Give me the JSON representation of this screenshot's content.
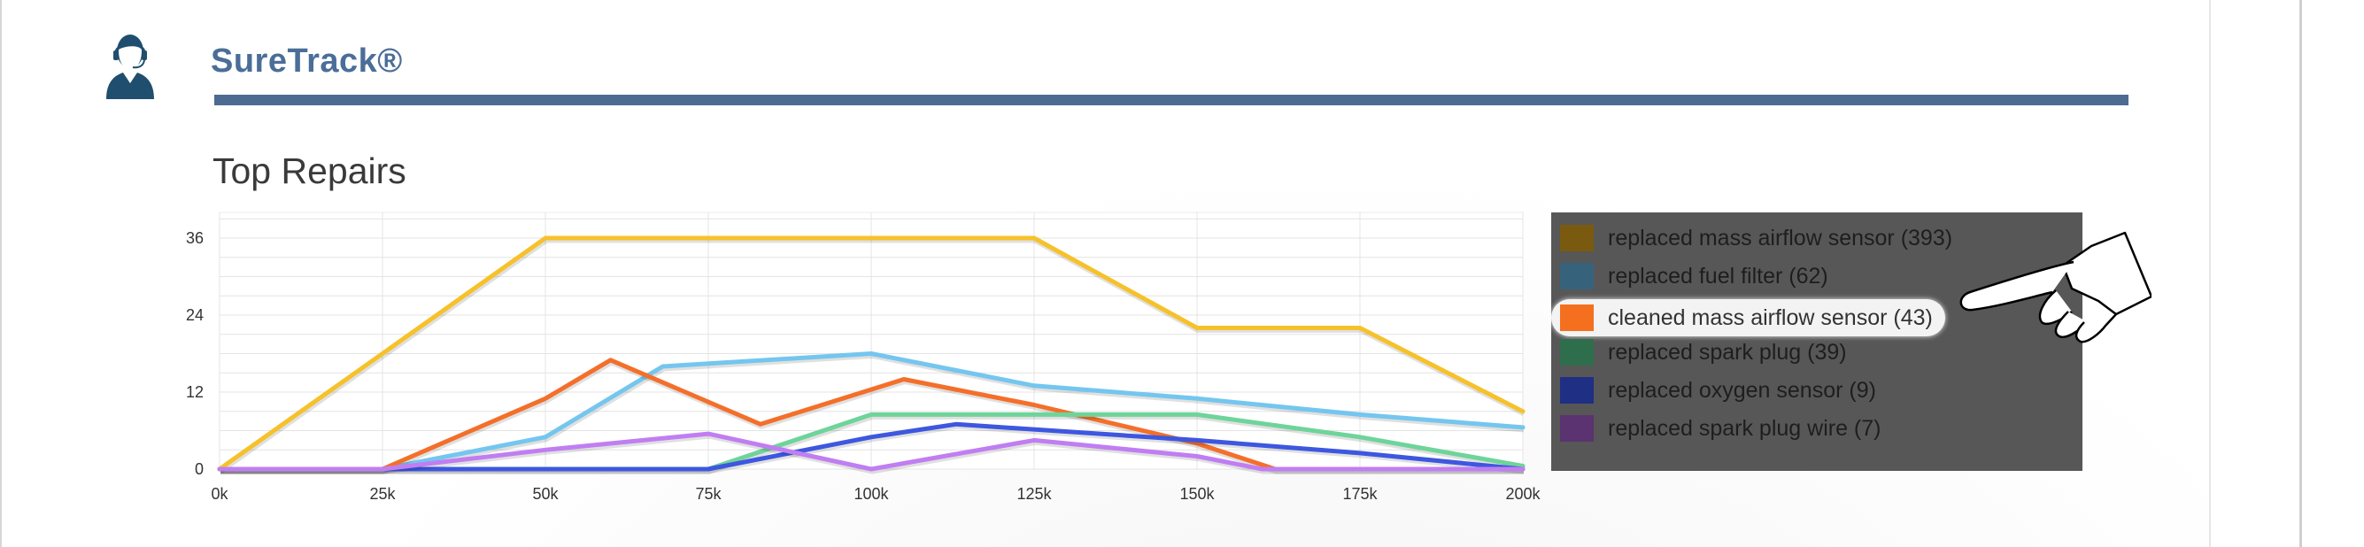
{
  "brand": {
    "name": "SureTrack®"
  },
  "section": {
    "title": "Top Repairs"
  },
  "icons": {
    "avatar": "person-avatar-icon",
    "pointer": "pointing-hand-icon"
  },
  "colors": {
    "brand": "#4a6e98",
    "bar": "#4d6a93",
    "legend_bg": "#575757"
  },
  "chart_data": {
    "type": "line",
    "title": "",
    "xlabel": "",
    "ylabel": "",
    "x": [
      0,
      25000,
      50000,
      75000,
      100000,
      125000,
      150000,
      175000,
      200000
    ],
    "x_tick_labels": [
      "0k",
      "25k",
      "50k",
      "75k",
      "100k",
      "125k",
      "150k",
      "175k",
      "200k"
    ],
    "y_ticks": [
      0,
      12,
      24,
      36
    ],
    "xlim": [
      0,
      200000
    ],
    "ylim": [
      0,
      40
    ],
    "grid": true,
    "legend_position": "right",
    "series": [
      {
        "name": "replaced mass airflow sensor (393)",
        "color": "#f6c12a",
        "legend_color": "#7a5a0e",
        "points": [
          [
            0,
            0
          ],
          [
            25000,
            18
          ],
          [
            50000,
            36
          ],
          [
            75000,
            36
          ],
          [
            100000,
            36
          ],
          [
            125000,
            36
          ],
          [
            150000,
            22
          ],
          [
            175000,
            22
          ],
          [
            200000,
            9
          ]
        ]
      },
      {
        "name": "replaced fuel filter (62)",
        "color": "#74c6ef",
        "legend_color": "#36627c",
        "points": [
          [
            0,
            0
          ],
          [
            25000,
            0
          ],
          [
            50000,
            5
          ],
          [
            68000,
            16
          ],
          [
            100000,
            18
          ],
          [
            125000,
            13
          ],
          [
            150000,
            11
          ],
          [
            175000,
            8.5
          ],
          [
            200000,
            6.5
          ]
        ]
      },
      {
        "name": "cleaned mass airflow sensor (43)",
        "color": "#f46f2a",
        "legend_color": "#f46f1e",
        "points": [
          [
            0,
            0
          ],
          [
            25000,
            0
          ],
          [
            50000,
            11
          ],
          [
            60000,
            17
          ],
          [
            83000,
            7
          ],
          [
            105000,
            14
          ],
          [
            125000,
            10
          ],
          [
            150000,
            4
          ],
          [
            162000,
            0
          ],
          [
            200000,
            0
          ]
        ]
      },
      {
        "name": "replaced spark plug (39)",
        "color": "#6ed49a",
        "legend_color": "#2f6e4c",
        "points": [
          [
            0,
            0
          ],
          [
            75000,
            0
          ],
          [
            100000,
            8.5
          ],
          [
            125000,
            8.5
          ],
          [
            150000,
            8.5
          ],
          [
            175000,
            5
          ],
          [
            200000,
            0.5
          ]
        ]
      },
      {
        "name": "replaced oxygen sensor (9)",
        "color": "#3d57e0",
        "legend_color": "#1f2f84",
        "points": [
          [
            0,
            0
          ],
          [
            75000,
            0
          ],
          [
            100000,
            5
          ],
          [
            113000,
            7
          ],
          [
            150000,
            4.5
          ],
          [
            175000,
            2.5
          ],
          [
            200000,
            0
          ]
        ]
      },
      {
        "name": "replaced spark plug wire (7)",
        "color": "#c07ef2",
        "legend_color": "#5a3370",
        "points": [
          [
            0,
            0
          ],
          [
            25000,
            0
          ],
          [
            50000,
            3
          ],
          [
            75000,
            5.5
          ],
          [
            100000,
            0
          ],
          [
            125000,
            4.5
          ],
          [
            150000,
            2
          ],
          [
            160000,
            0
          ],
          [
            200000,
            0
          ]
        ]
      }
    ],
    "highlighted_series": "cleaned mass airflow sensor (43)"
  }
}
